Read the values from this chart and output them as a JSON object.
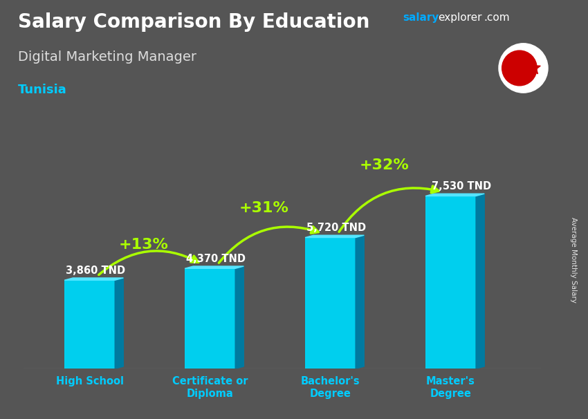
{
  "title": "Salary Comparison By Education",
  "subtitle": "Digital Marketing Manager",
  "country": "Tunisia",
  "ylabel": "Average Monthly Salary",
  "categories": [
    "High School",
    "Certificate or\nDiploma",
    "Bachelor's\nDegree",
    "Master's\nDegree"
  ],
  "values": [
    3860,
    4370,
    5720,
    7530
  ],
  "value_labels": [
    "3,860 TND",
    "4,370 TND",
    "5,720 TND",
    "7,530 TND"
  ],
  "pct_labels": [
    "+13%",
    "+31%",
    "+32%"
  ],
  "bar_color_face": "#00cfee",
  "bar_color_dark": "#007aa0",
  "bar_color_top": "#55e5ff",
  "background_color": "#555555",
  "title_color": "#ffffff",
  "subtitle_color": "#dddddd",
  "country_color": "#00ccff",
  "salary_label_color": "#ffffff",
  "pct_color": "#aaff00",
  "arrow_color": "#aaff00",
  "brand_salary_color": "#00aaff",
  "brand_explorer_color": "#ffffff",
  "ylim": [
    0,
    9500
  ],
  "figsize": [
    8.5,
    6.06
  ],
  "dpi": 100
}
